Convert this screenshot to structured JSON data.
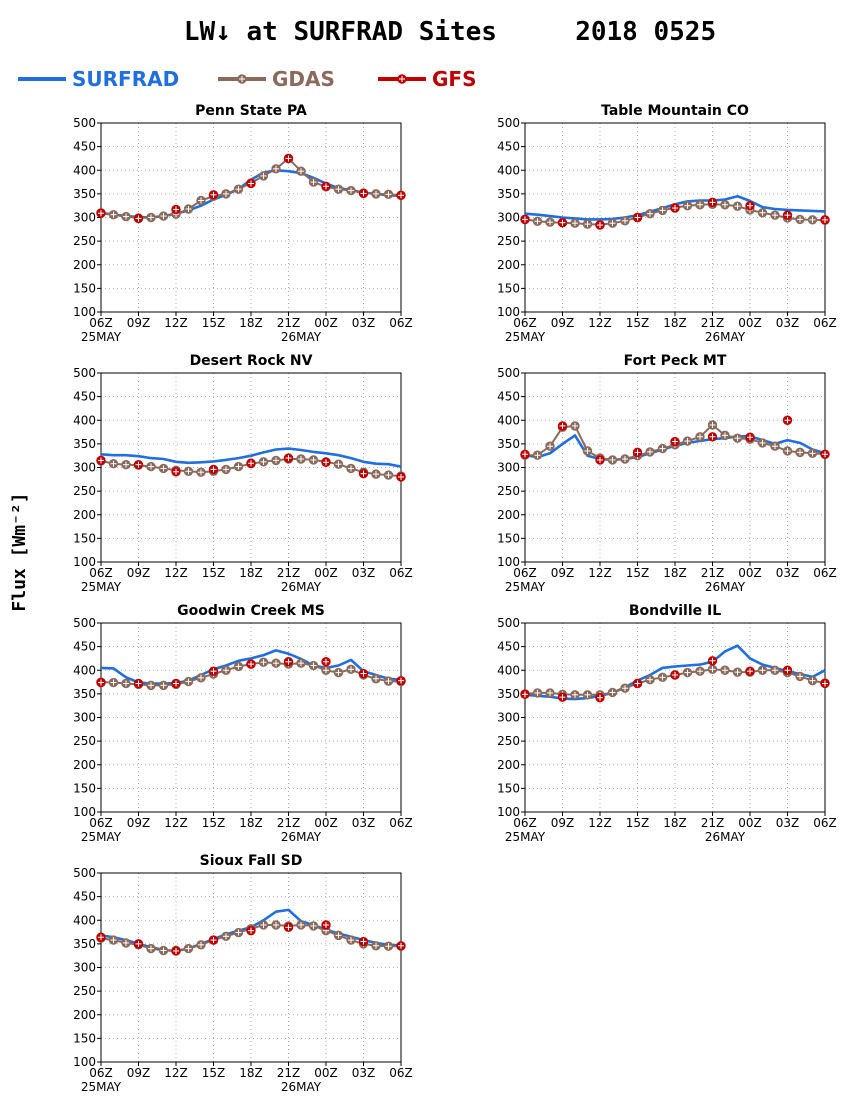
{
  "title": "LW↓ at SURFRAD Sites     2018 0525",
  "ylabel": "Flux [Wm⁻²]",
  "legend": [
    {
      "name": "SURFRAD",
      "color": "#1f6fe0",
      "marker": "none"
    },
    {
      "name": "GDAS",
      "color": "#8b6a5c",
      "marker": "circle-plus"
    },
    {
      "name": "GFS",
      "color": "#c00000",
      "marker": "circle-plus"
    }
  ],
  "xticks": [
    "06Z",
    "09Z",
    "12Z",
    "15Z",
    "18Z",
    "21Z",
    "00Z",
    "03Z",
    "06Z"
  ],
  "date_labels": {
    "start": "25MAY",
    "mid": "26MAY"
  },
  "yticks": [
    100,
    150,
    200,
    250,
    300,
    350,
    400,
    450,
    500
  ],
  "chart_data": [
    {
      "type": "line",
      "title": "Penn State PA",
      "xlim": [
        0,
        24
      ],
      "ylim": [
        100,
        500
      ],
      "grid": true,
      "x": [
        0,
        1,
        2,
        3,
        4,
        5,
        6,
        7,
        8,
        9,
        10,
        11,
        12,
        13,
        14,
        15,
        16,
        17,
        18,
        19,
        20,
        21,
        22,
        23,
        24
      ],
      "series": [
        {
          "name": "SURFRAD",
          "values": [
            310,
            306,
            303,
            301,
            300,
            303,
            308,
            315,
            325,
            338,
            348,
            360,
            380,
            395,
            400,
            398,
            394,
            384,
            372,
            362,
            358,
            353,
            350,
            347,
            346
          ]
        },
        {
          "name": "GDAS",
          "values": [
            310,
            306,
            302,
            299,
            300,
            303,
            307,
            318,
            336,
            345,
            350,
            360,
            373,
            388,
            403,
            425,
            398,
            375,
            365,
            360,
            357,
            352,
            350,
            349,
            347
          ]
        },
        {
          "name": "GFS",
          "x": [
            0,
            3,
            6,
            9,
            12,
            15,
            18,
            21,
            24
          ],
          "values": [
            309,
            298,
            317,
            348,
            372,
            425,
            366,
            351,
            347
          ]
        }
      ]
    },
    {
      "type": "line",
      "title": "Table Mountain CO",
      "xlim": [
        0,
        24
      ],
      "ylim": [
        100,
        500
      ],
      "grid": true,
      "x": [
        0,
        1,
        2,
        3,
        4,
        5,
        6,
        7,
        8,
        9,
        10,
        11,
        12,
        13,
        14,
        15,
        16,
        17,
        18,
        19,
        20,
        21,
        22,
        23,
        24
      ],
      "series": [
        {
          "name": "SURFRAD",
          "values": [
            308,
            306,
            303,
            300,
            298,
            296,
            296,
            297,
            300,
            305,
            312,
            320,
            328,
            334,
            336,
            336,
            338,
            345,
            335,
            322,
            318,
            316,
            315,
            314,
            313
          ]
        },
        {
          "name": "GDAS",
          "values": [
            296,
            292,
            290,
            289,
            288,
            286,
            285,
            288,
            293,
            300,
            308,
            315,
            321,
            325,
            327,
            328,
            327,
            324,
            316,
            310,
            305,
            299,
            296,
            295,
            294
          ]
        },
        {
          "name": "GFS",
          "x": [
            0,
            3,
            6,
            9,
            12,
            15,
            18,
            21,
            24
          ],
          "values": [
            296,
            289,
            284,
            300,
            320,
            332,
            325,
            305,
            295
          ]
        }
      ]
    },
    {
      "type": "line",
      "title": "Desert Rock NV",
      "xlim": [
        0,
        24
      ],
      "ylim": [
        100,
        500
      ],
      "grid": true,
      "x": [
        0,
        1,
        2,
        3,
        4,
        5,
        6,
        7,
        8,
        9,
        10,
        11,
        12,
        13,
        14,
        15,
        16,
        17,
        18,
        19,
        20,
        21,
        22,
        23,
        24
      ],
      "series": [
        {
          "name": "SURFRAD",
          "values": [
            328,
            326,
            326,
            324,
            320,
            318,
            312,
            310,
            311,
            313,
            316,
            320,
            325,
            332,
            338,
            340,
            337,
            333,
            330,
            326,
            320,
            312,
            308,
            307,
            302
          ]
        },
        {
          "name": "GDAS",
          "values": [
            314,
            308,
            306,
            305,
            302,
            298,
            294,
            292,
            290,
            292,
            296,
            302,
            308,
            312,
            315,
            318,
            318,
            316,
            312,
            307,
            298,
            290,
            286,
            284,
            282
          ]
        },
        {
          "name": "GFS",
          "x": [
            0,
            3,
            6,
            9,
            12,
            15,
            18,
            21,
            24
          ],
          "values": [
            315,
            306,
            291,
            296,
            309,
            320,
            311,
            287,
            280
          ]
        }
      ]
    },
    {
      "type": "line",
      "title": "Fort Peck MT",
      "xlim": [
        0,
        24
      ],
      "ylim": [
        100,
        500
      ],
      "grid": true,
      "x": [
        0,
        1,
        2,
        3,
        4,
        5,
        6,
        7,
        8,
        9,
        10,
        11,
        12,
        13,
        14,
        15,
        16,
        17,
        18,
        19,
        20,
        21,
        22,
        23,
        24
      ],
      "series": [
        {
          "name": "SURFRAD",
          "values": [
            326,
            322,
            330,
            350,
            368,
            325,
            318,
            316,
            318,
            322,
            330,
            338,
            346,
            352,
            356,
            360,
            362,
            366,
            366,
            358,
            350,
            358,
            352,
            338,
            330
          ]
        },
        {
          "name": "GDAS",
          "values": [
            326,
            326,
            345,
            385,
            388,
            335,
            320,
            316,
            318,
            325,
            333,
            340,
            348,
            356,
            365,
            390,
            368,
            362,
            360,
            352,
            345,
            335,
            332,
            330,
            328
          ]
        },
        {
          "name": "GFS",
          "x": [
            0,
            3,
            6,
            9,
            12,
            15,
            18,
            21,
            24
          ],
          "values": [
            328,
            388,
            316,
            332,
            355,
            365,
            364,
            400,
            328
          ]
        }
      ]
    },
    {
      "type": "line",
      "title": "Goodwin Creek MS",
      "xlim": [
        0,
        24
      ],
      "ylim": [
        100,
        500
      ],
      "grid": true,
      "x": [
        0,
        1,
        2,
        3,
        4,
        5,
        6,
        7,
        8,
        9,
        10,
        11,
        12,
        13,
        14,
        15,
        16,
        17,
        18,
        19,
        20,
        21,
        22,
        23,
        24
      ],
      "series": [
        {
          "name": "SURFRAD",
          "values": [
            405,
            404,
            385,
            374,
            372,
            372,
            373,
            378,
            390,
            402,
            410,
            420,
            425,
            432,
            442,
            435,
            424,
            410,
            405,
            410,
            422,
            398,
            390,
            382,
            380
          ]
        },
        {
          "name": "GDAS",
          "values": [
            375,
            374,
            372,
            370,
            368,
            368,
            370,
            376,
            384,
            392,
            400,
            408,
            413,
            417,
            415,
            413,
            415,
            410,
            400,
            395,
            402,
            390,
            382,
            377,
            376
          ]
        },
        {
          "name": "GFS",
          "x": [
            0,
            3,
            6,
            9,
            12,
            15,
            18,
            21,
            24
          ],
          "values": [
            374,
            372,
            372,
            398,
            413,
            418,
            418,
            393,
            378
          ]
        }
      ]
    },
    {
      "type": "line",
      "title": "Bondville IL",
      "xlim": [
        0,
        24
      ],
      "ylim": [
        100,
        500
      ],
      "grid": true,
      "x": [
        0,
        1,
        2,
        3,
        4,
        5,
        6,
        7,
        8,
        9,
        10,
        11,
        12,
        13,
        14,
        15,
        16,
        17,
        18,
        19,
        20,
        21,
        22,
        23,
        24
      ],
      "series": [
        {
          "name": "SURFRAD",
          "values": [
            348,
            346,
            344,
            340,
            339,
            341,
            346,
            352,
            364,
            378,
            390,
            405,
            408,
            410,
            412,
            418,
            440,
            452,
            425,
            412,
            405,
            398,
            392,
            386,
            400
          ]
        },
        {
          "name": "GDAS",
          "values": [
            350,
            352,
            352,
            349,
            348,
            348,
            348,
            353,
            362,
            372,
            380,
            385,
            390,
            395,
            398,
            402,
            400,
            396,
            396,
            400,
            400,
            395,
            387,
            378,
            373
          ]
        },
        {
          "name": "GFS",
          "x": [
            0,
            3,
            6,
            9,
            12,
            15,
            18,
            21,
            24
          ],
          "values": [
            349,
            343,
            342,
            372,
            390,
            420,
            398,
            400,
            372
          ]
        }
      ]
    },
    {
      "type": "line",
      "title": "Sioux Fall SD",
      "xlim": [
        0,
        24
      ],
      "ylim": [
        100,
        500
      ],
      "grid": true,
      "x": [
        0,
        1,
        2,
        3,
        4,
        5,
        6,
        7,
        8,
        9,
        10,
        11,
        12,
        13,
        14,
        15,
        16,
        17,
        18,
        19,
        20,
        21,
        22,
        23,
        24
      ],
      "series": [
        {
          "name": "SURFRAD",
          "values": [
            368,
            364,
            358,
            350,
            343,
            337,
            335,
            340,
            350,
            360,
            370,
            378,
            385,
            400,
            418,
            422,
            398,
            390,
            380,
            372,
            365,
            358,
            352,
            348,
            347
          ]
        },
        {
          "name": "GDAS",
          "values": [
            362,
            358,
            352,
            348,
            340,
            336,
            336,
            340,
            348,
            358,
            366,
            374,
            382,
            390,
            390,
            388,
            390,
            388,
            378,
            368,
            358,
            350,
            346,
            345,
            345
          ]
        },
        {
          "name": "GFS",
          "x": [
            0,
            3,
            6,
            9,
            12,
            15,
            18,
            21,
            24
          ],
          "values": [
            364,
            350,
            335,
            358,
            378,
            385,
            390,
            355,
            346
          ]
        }
      ]
    }
  ]
}
